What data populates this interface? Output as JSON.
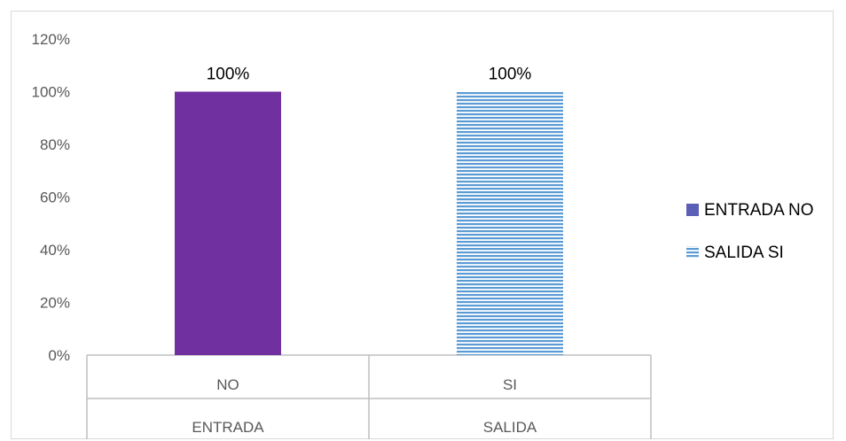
{
  "chart_data": {
    "type": "bar",
    "categories": [
      {
        "level1": "NO",
        "level2": "ENTRADA"
      },
      {
        "level1": "SI",
        "level2": "SALIDA"
      }
    ],
    "series": [
      {
        "name": "ENTRADA NO",
        "values": [
          1.0,
          null
        ],
        "color": "#7030a0",
        "pattern": "solid"
      },
      {
        "name": "SALIDA SI",
        "values": [
          null,
          1.0
        ],
        "color": "#5b9bd5",
        "pattern": "horizontal-lines"
      }
    ],
    "data_labels": [
      "100%",
      "100%"
    ],
    "y_ticks": [
      "0%",
      "20%",
      "40%",
      "60%",
      "80%",
      "100%",
      "120%"
    ],
    "ylim": [
      0,
      1.2
    ],
    "grid": false,
    "legend_position": "right",
    "title": "",
    "xlabel": "",
    "ylabel": ""
  }
}
